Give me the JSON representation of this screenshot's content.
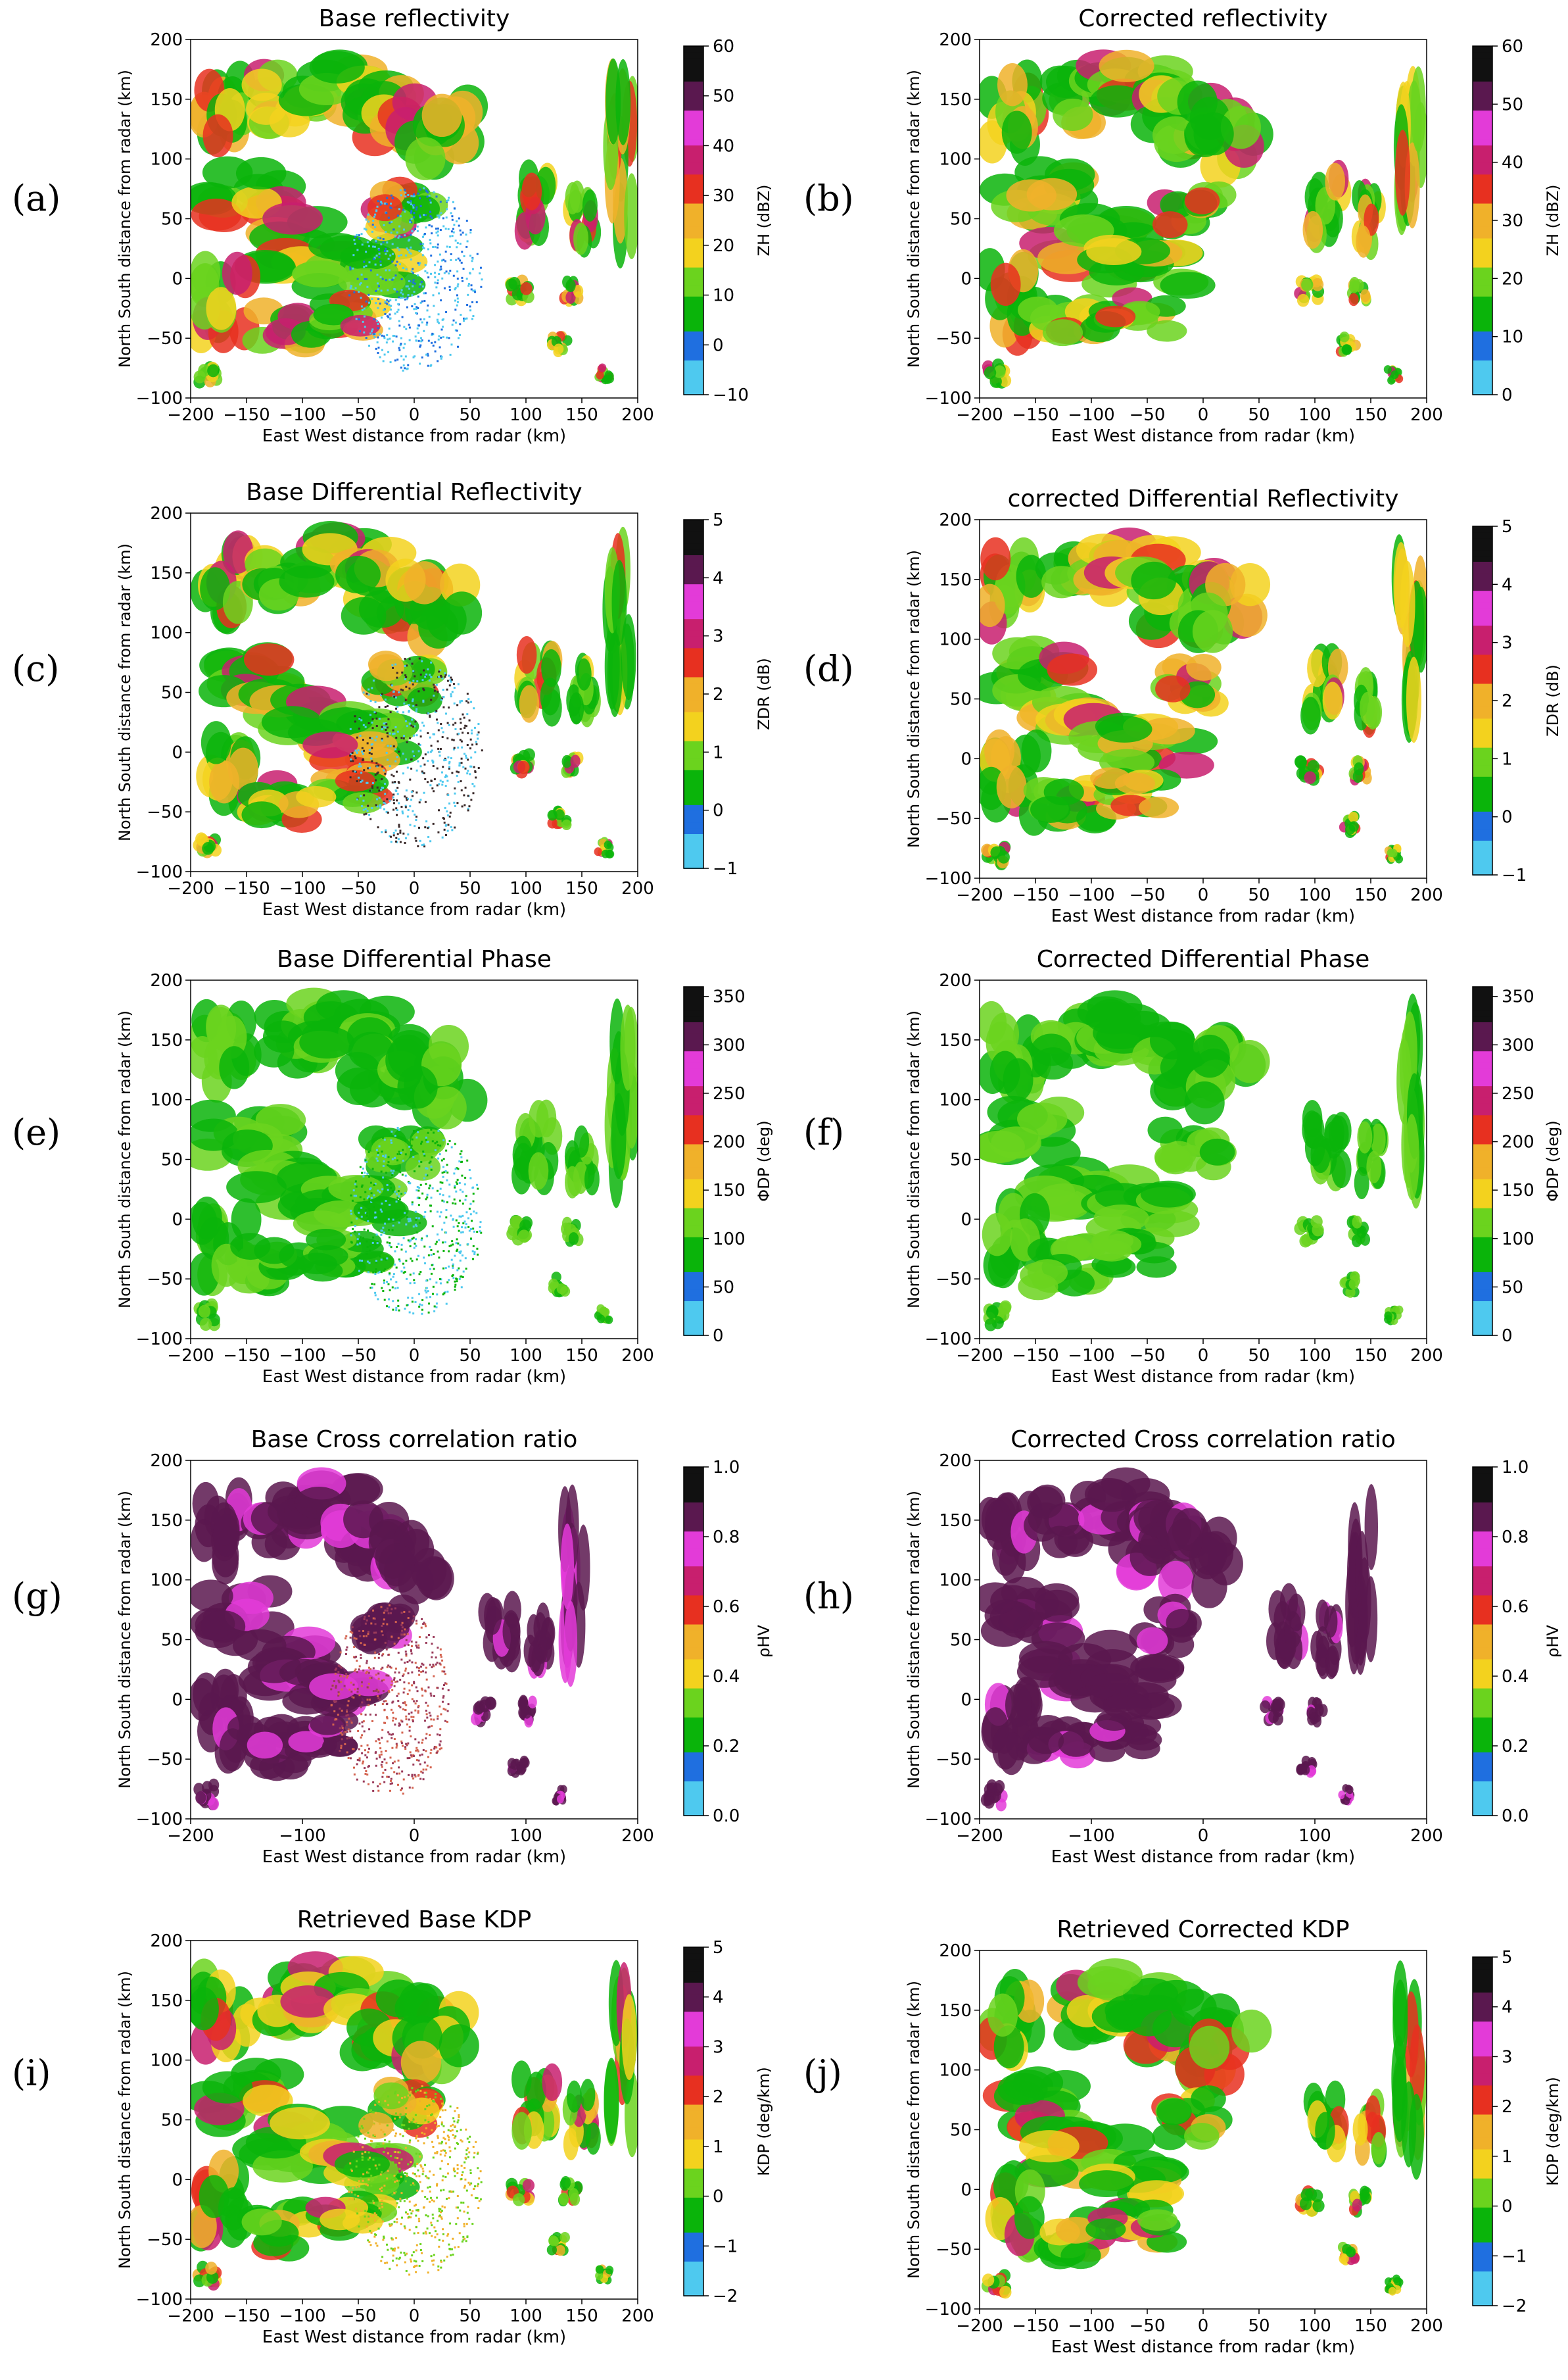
{
  "colors": {
    "dbz": [
      "#4ec9ef",
      "#1f6fe0",
      "#0ab40a",
      "#6bd31e",
      "#f3d21e",
      "#f0b12a",
      "#e73020",
      "#c81f6e",
      "#e33bd8",
      "#5a184f",
      "#111111"
    ],
    "zdr": [
      "#4ec9ef",
      "#1f6fe0",
      "#0ab40a",
      "#6bd31e",
      "#f3d21e",
      "#f0b12a",
      "#e73020",
      "#c81f6e",
      "#e33bd8",
      "#5a184f",
      "#111111"
    ],
    "phase": [
      "#4ec9ef",
      "#1f6fe0",
      "#0ab40a",
      "#6bd31e",
      "#f3d21e",
      "#f0b12a",
      "#e73020",
      "#c81f6e",
      "#e33bd8",
      "#5a184f",
      "#111111"
    ],
    "rho": [
      "#4ec9ef",
      "#1f6fe0",
      "#0ab40a",
      "#6bd31e",
      "#f3d21e",
      "#f0b12a",
      "#e73020",
      "#c81f6e",
      "#e33bd8",
      "#5a184f",
      "#111111"
    ],
    "kdp": [
      "#4ec9ef",
      "#1f6fe0",
      "#0ab40a",
      "#6bd31e",
      "#f3d21e",
      "#f0b12a",
      "#e73020",
      "#c81f6e",
      "#e33bd8",
      "#5a184f",
      "#111111"
    ]
  },
  "chart_data": [
    {
      "id": "a",
      "type": "heatmap",
      "panel_label": "(a)",
      "title": "Base reflectivity",
      "xlabel": "East West distance from radar (km)",
      "ylabel": "North South distance from radar (km)",
      "xlim": [
        -200,
        200
      ],
      "ylim": [
        -100,
        200
      ],
      "xticks": [
        "−200",
        "−150",
        "−100",
        "−50",
        "0",
        "50",
        "100",
        "150",
        "200"
      ],
      "yticks": [
        "−100",
        "−50",
        "0",
        "50",
        "100",
        "150",
        "200"
      ],
      "colorbar": {
        "label": "ZH (dBZ)",
        "range": [
          -10,
          60
        ],
        "ticks": [
          "−10",
          "0",
          "10",
          "20",
          "30",
          "40",
          "50",
          "60"
        ],
        "palette": "dbz"
      },
      "variant": "base",
      "field": "refl"
    },
    {
      "id": "b",
      "type": "heatmap",
      "panel_label": "(b)",
      "title": "Corrected reflectivity",
      "xlabel": "East West distance from radar (km)",
      "ylabel": "North South distance from radar (km)",
      "xlim": [
        -200,
        200
      ],
      "ylim": [
        -100,
        200
      ],
      "xticks": [
        "−200",
        "−150",
        "−100",
        "−50",
        "0",
        "50",
        "100",
        "150",
        "200"
      ],
      "yticks": [
        "−100",
        "−50",
        "0",
        "50",
        "100",
        "150",
        "200"
      ],
      "colorbar": {
        "label": "ZH (dBZ)",
        "range": [
          0,
          60
        ],
        "ticks": [
          "0",
          "10",
          "20",
          "30",
          "40",
          "50",
          "60"
        ],
        "palette": "dbz"
      },
      "variant": "corrected",
      "field": "refl"
    },
    {
      "id": "c",
      "type": "heatmap",
      "panel_label": "(c)",
      "title": "Base Differential Reflectivity",
      "xlabel": "East West distance from radar (km)",
      "ylabel": "North South distance from radar (km)",
      "xlim": [
        -200,
        200
      ],
      "ylim": [
        -100,
        200
      ],
      "xticks": [
        "−200",
        "−150",
        "−100",
        "−50",
        "0",
        "50",
        "100",
        "150",
        "200"
      ],
      "yticks": [
        "−100",
        "−50",
        "0",
        "50",
        "100",
        "150",
        "200"
      ],
      "colorbar": {
        "label": "ZDR (dB)",
        "range": [
          -1,
          5
        ],
        "ticks": [
          "−1",
          "0",
          "1",
          "2",
          "3",
          "4",
          "5"
        ],
        "palette": "zdr"
      },
      "variant": "base",
      "field": "zdr"
    },
    {
      "id": "d",
      "type": "heatmap",
      "panel_label": "(d)",
      "title": "corrected Differential Reflectivity",
      "xlabel": "East West distance from radar (km)",
      "ylabel": "North South distance from radar (km)",
      "xlim": [
        -200,
        200
      ],
      "ylim": [
        -100,
        200
      ],
      "xticks": [
        "−200",
        "−150",
        "−100",
        "−50",
        "0",
        "50",
        "100",
        "150",
        "200"
      ],
      "yticks": [
        "−100",
        "−50",
        "0",
        "50",
        "100",
        "150",
        "200"
      ],
      "colorbar": {
        "label": "ZDR (dB)",
        "range": [
          -1,
          5
        ],
        "ticks": [
          "−1",
          "0",
          "1",
          "2",
          "3",
          "4",
          "5"
        ],
        "palette": "zdr"
      },
      "variant": "corrected",
      "field": "zdr"
    },
    {
      "id": "e",
      "type": "heatmap",
      "panel_label": "(e)",
      "title": "Base Differential Phase",
      "xlabel": "East West distance from radar (km)",
      "ylabel": "North South distance from radar (km)",
      "xlim": [
        -200,
        200
      ],
      "ylim": [
        -100,
        200
      ],
      "xticks": [
        "−200",
        "−150",
        "−100",
        "−50",
        "0",
        "50",
        "100",
        "150",
        "200"
      ],
      "yticks": [
        "−100",
        "−50",
        "0",
        "50",
        "100",
        "150",
        "200"
      ],
      "colorbar": {
        "label": "ΦDP (deg)",
        "range": [
          0,
          360
        ],
        "ticks": [
          "0",
          "50",
          "100",
          "150",
          "200",
          "250",
          "300",
          "350"
        ],
        "palette": "phase"
      },
      "variant": "base",
      "field": "phase"
    },
    {
      "id": "f",
      "type": "heatmap",
      "panel_label": "(f)",
      "title": "Corrected Differential Phase",
      "xlabel": "East West distance from radar (km)",
      "ylabel": "North South distance from radar (km)",
      "xlim": [
        -200,
        200
      ],
      "ylim": [
        -100,
        200
      ],
      "xticks": [
        "−200",
        "−150",
        "−100",
        "−50",
        "0",
        "50",
        "100",
        "150",
        "200"
      ],
      "yticks": [
        "−100",
        "−50",
        "0",
        "50",
        "100",
        "150",
        "200"
      ],
      "colorbar": {
        "label": "ΦDP (deg)",
        "range": [
          0,
          360
        ],
        "ticks": [
          "0",
          "50",
          "100",
          "150",
          "200",
          "250",
          "300",
          "350"
        ],
        "palette": "phase"
      },
      "variant": "corrected",
      "field": "phase"
    },
    {
      "id": "g",
      "type": "heatmap",
      "panel_label": "(g)",
      "title": "Base Cross correlation ratio",
      "xlabel": "East West distance from radar (km)",
      "ylabel": "North South distance from radar (km)",
      "xlim": [
        -200,
        250
      ],
      "ylim": [
        -100,
        200
      ],
      "xticks": [
        "−200",
        "−100",
        "0",
        "100",
        "200"
      ],
      "yticks": [
        "−100",
        "−50",
        "0",
        "50",
        "100",
        "150",
        "200"
      ],
      "colorbar": {
        "label": "ρHV",
        "range": [
          0,
          1
        ],
        "ticks": [
          "0.0",
          "0.2",
          "0.4",
          "0.6",
          "0.8",
          "1.0"
        ],
        "palette": "rho"
      },
      "variant": "base",
      "field": "rho"
    },
    {
      "id": "h",
      "type": "heatmap",
      "panel_label": "(h)",
      "title": "Corrected Cross correlation ratio",
      "xlabel": "East West distance from radar (km)",
      "ylabel": "North South distance from radar (km)",
      "xlim": [
        -200,
        250
      ],
      "ylim": [
        -100,
        200
      ],
      "xticks": [
        "−200",
        "−100",
        "0",
        "100",
        "200"
      ],
      "yticks": [
        "−100",
        "−50",
        "0",
        "50",
        "100",
        "150",
        "200"
      ],
      "colorbar": {
        "label": "ρHV",
        "range": [
          0,
          1
        ],
        "ticks": [
          "0.0",
          "0.2",
          "0.4",
          "0.6",
          "0.8",
          "1.0"
        ],
        "palette": "rho"
      },
      "variant": "corrected",
      "field": "rho"
    },
    {
      "id": "i",
      "type": "heatmap",
      "panel_label": "(i)",
      "title": "Retrieved Base KDP",
      "xlabel": "East West distance from radar (km)",
      "ylabel": "North South distance from radar (km)",
      "xlim": [
        -200,
        200
      ],
      "ylim": [
        -100,
        200
      ],
      "xticks": [
        "−200",
        "−150",
        "−100",
        "−50",
        "0",
        "50",
        "100",
        "150",
        "200"
      ],
      "yticks": [
        "−100",
        "−50",
        "0",
        "50",
        "100",
        "150",
        "200"
      ],
      "colorbar": {
        "label": "KDP (deg/km)",
        "range": [
          -2,
          5
        ],
        "ticks": [
          "−2",
          "−1",
          "0",
          "1",
          "2",
          "3",
          "4",
          "5"
        ],
        "palette": "kdp"
      },
      "variant": "base",
      "field": "kdp"
    },
    {
      "id": "j",
      "type": "heatmap",
      "panel_label": "(j)",
      "title": "Retrieved Corrected KDP",
      "xlabel": "East West distance from radar (km)",
      "ylabel": "North South distance from radar (km)",
      "xlim": [
        -200,
        200
      ],
      "ylim": [
        -100,
        200
      ],
      "xticks": [
        "−200",
        "−150",
        "−100",
        "−50",
        "0",
        "50",
        "100",
        "150",
        "200"
      ],
      "yticks": [
        "−100",
        "−50",
        "0",
        "50",
        "100",
        "150",
        "200"
      ],
      "colorbar": {
        "label": "KDP (deg/km)",
        "range": [
          -2,
          5
        ],
        "ticks": [
          "−2",
          "−1",
          "0",
          "1",
          "2",
          "3",
          "4",
          "5"
        ],
        "palette": "kdp"
      },
      "variant": "corrected",
      "field": "kdp"
    }
  ]
}
